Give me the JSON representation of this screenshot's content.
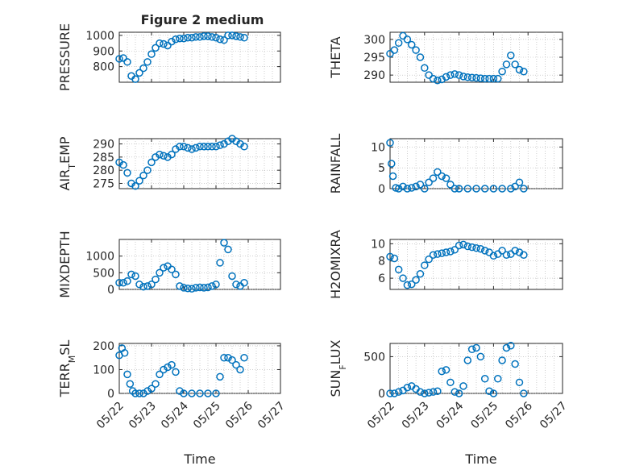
{
  "figure": {
    "title": "Figure 2 medium"
  },
  "chart_data": [
    {
      "type": "scatter",
      "ylabel": "PRESSURE",
      "xlabel": "",
      "xlim": [
        "05/22",
        "05/27"
      ],
      "ylim": [
        700,
        1020
      ],
      "yticks": [
        "800",
        "900",
        "1000"
      ],
      "xticklabels": [],
      "grid": "on",
      "marker_color": "#0072BD",
      "x": [
        "05/22 00:00",
        "05/22 03:00",
        "05/22 06:00",
        "05/22 09:00",
        "05/22 12:00",
        "05/22 15:00",
        "05/22 18:00",
        "05/22 21:00",
        "05/23 00:00",
        "05/23 03:00",
        "05/23 06:00",
        "05/23 09:00",
        "05/23 12:00",
        "05/23 15:00",
        "05/23 18:00",
        "05/23 21:00",
        "05/24 00:00",
        "05/24 03:00",
        "05/24 06:00",
        "05/24 09:00",
        "05/24 12:00",
        "05/24 15:00",
        "05/24 18:00",
        "05/24 21:00",
        "05/25 00:00",
        "05/25 03:00",
        "05/25 06:00",
        "05/25 09:00",
        "05/25 12:00",
        "05/25 15:00",
        "05/25 18:00",
        "05/25 21:00"
      ],
      "y": [
        850,
        855,
        830,
        740,
        720,
        760,
        790,
        830,
        880,
        920,
        950,
        945,
        935,
        960,
        975,
        980,
        980,
        985,
        985,
        990,
        990,
        995,
        995,
        990,
        985,
        975,
        970,
        1000,
        1000,
        995,
        990,
        985
      ]
    },
    {
      "type": "scatter",
      "ylabel": "THETA",
      "xlabel": "",
      "xlim": [
        "05/22",
        "05/27"
      ],
      "ylim": [
        288,
        302
      ],
      "yticks": [
        "290",
        "295",
        "300"
      ],
      "xticklabels": [],
      "grid": "on",
      "marker_color": "#0072BD",
      "x": [
        "05/22 00:00",
        "05/22 03:00",
        "05/22 06:00",
        "05/22 09:00",
        "05/22 12:00",
        "05/22 15:00",
        "05/22 18:00",
        "05/22 21:00",
        "05/23 00:00",
        "05/23 03:00",
        "05/23 06:00",
        "05/23 09:00",
        "05/23 12:00",
        "05/23 15:00",
        "05/23 18:00",
        "05/23 21:00",
        "05/24 00:00",
        "05/24 03:00",
        "05/24 06:00",
        "05/24 09:00",
        "05/24 12:00",
        "05/24 15:00",
        "05/24 18:00",
        "05/24 21:00",
        "05/25 00:00",
        "05/25 03:00",
        "05/25 06:00",
        "05/25 09:00",
        "05/25 12:00",
        "05/25 15:00",
        "05/25 18:00",
        "05/25 21:00"
      ],
      "y": [
        296,
        297,
        299,
        301,
        300,
        298.5,
        297,
        295,
        292,
        290,
        289,
        288.5,
        288.8,
        289.5,
        290,
        290.3,
        290,
        289.6,
        289.4,
        289.3,
        289.2,
        289.1,
        289,
        289,
        289,
        289,
        291,
        293,
        295.5,
        293,
        291.5,
        291
      ]
    },
    {
      "type": "scatter",
      "ylabel": "AIR_TEMP",
      "xlabel": "",
      "xlim": [
        "05/22",
        "05/27"
      ],
      "ylim": [
        273,
        292
      ],
      "yticks": [
        "275",
        "280",
        "285",
        "290"
      ],
      "xticklabels": [],
      "grid": "on",
      "marker_color": "#0072BD",
      "x": [
        "05/22 00:00",
        "05/22 03:00",
        "05/22 06:00",
        "05/22 09:00",
        "05/22 12:00",
        "05/22 15:00",
        "05/22 18:00",
        "05/22 21:00",
        "05/23 00:00",
        "05/23 03:00",
        "05/23 06:00",
        "05/23 09:00",
        "05/23 12:00",
        "05/23 15:00",
        "05/23 18:00",
        "05/23 21:00",
        "05/24 00:00",
        "05/24 03:00",
        "05/24 06:00",
        "05/24 09:00",
        "05/24 12:00",
        "05/24 15:00",
        "05/24 18:00",
        "05/24 21:00",
        "05/25 00:00",
        "05/25 03:00",
        "05/25 06:00",
        "05/25 09:00",
        "05/25 12:00",
        "05/25 15:00",
        "05/25 18:00",
        "05/25 21:00"
      ],
      "y": [
        283,
        282,
        279,
        275,
        274,
        276,
        278,
        280,
        283,
        285,
        286,
        285.5,
        285,
        286,
        288,
        289,
        289,
        288.5,
        288,
        288.5,
        289,
        289,
        289,
        289,
        289,
        289.5,
        290,
        291,
        292,
        291,
        290,
        289
      ]
    },
    {
      "type": "scatter",
      "ylabel": "RAINFALL",
      "xlabel": "",
      "xlim": [
        "05/22",
        "05/27"
      ],
      "ylim": [
        0,
        12
      ],
      "yticks": [
        "0",
        "5",
        "10"
      ],
      "xticklabels": [],
      "grid": "on",
      "marker_color": "#0072BD",
      "x": [
        "05/22 00:00",
        "05/22 01:00",
        "05/22 02:00",
        "05/22 04:00",
        "05/22 06:00",
        "05/22 09:00",
        "05/22 12:00",
        "05/22 15:00",
        "05/22 18:00",
        "05/22 21:00",
        "05/23 00:00",
        "05/23 03:00",
        "05/23 06:00",
        "05/23 09:00",
        "05/23 12:00",
        "05/23 15:00",
        "05/23 18:00",
        "05/23 21:00",
        "05/24 00:00",
        "05/24 06:00",
        "05/24 12:00",
        "05/24 18:00",
        "05/25 00:00",
        "05/25 06:00",
        "05/25 12:00",
        "05/25 15:00",
        "05/25 18:00",
        "05/25 21:00"
      ],
      "y": [
        11,
        6,
        3,
        0.2,
        0,
        0.5,
        0,
        0.2,
        0.5,
        1,
        0,
        1.5,
        2.5,
        4,
        3,
        2.5,
        1,
        0,
        0,
        0,
        0,
        0,
        0,
        0,
        0,
        0.5,
        1.5,
        0
      ]
    },
    {
      "type": "scatter",
      "ylabel": "MIXDEPTH",
      "xlabel": "",
      "xlim": [
        "05/22",
        "05/27"
      ],
      "ylim": [
        0,
        1500
      ],
      "yticks": [
        "0",
        "500",
        "1000"
      ],
      "xticklabels": [],
      "grid": "on",
      "marker_color": "#0072BD",
      "x": [
        "05/22 00:00",
        "05/22 03:00",
        "05/22 06:00",
        "05/22 09:00",
        "05/22 12:00",
        "05/22 15:00",
        "05/22 18:00",
        "05/22 21:00",
        "05/23 00:00",
        "05/23 03:00",
        "05/23 06:00",
        "05/23 09:00",
        "05/23 12:00",
        "05/23 15:00",
        "05/23 18:00",
        "05/23 21:00",
        "05/24 00:00",
        "05/24 03:00",
        "05/24 06:00",
        "05/24 09:00",
        "05/24 12:00",
        "05/24 15:00",
        "05/24 18:00",
        "05/24 21:00",
        "05/25 00:00",
        "05/25 03:00",
        "05/25 06:00",
        "05/25 09:00",
        "05/25 12:00",
        "05/25 15:00",
        "05/25 18:00",
        "05/25 21:00"
      ],
      "y": [
        200,
        200,
        250,
        450,
        400,
        150,
        80,
        100,
        150,
        300,
        500,
        650,
        700,
        600,
        450,
        100,
        50,
        30,
        20,
        50,
        60,
        50,
        60,
        100,
        150,
        800,
        1400,
        1200,
        400,
        150,
        100,
        200
      ]
    },
    {
      "type": "scatter",
      "ylabel": "H2OMIXRA",
      "xlabel": "",
      "xlim": [
        "05/22",
        "05/27"
      ],
      "ylim": [
        4.7,
        10.5
      ],
      "yticks": [
        "6",
        "8",
        "10"
      ],
      "xticklabels": [],
      "grid": "on",
      "marker_color": "#0072BD",
      "x": [
        "05/22 00:00",
        "05/22 03:00",
        "05/22 06:00",
        "05/22 09:00",
        "05/22 12:00",
        "05/22 15:00",
        "05/22 18:00",
        "05/22 21:00",
        "05/23 00:00",
        "05/23 03:00",
        "05/23 06:00",
        "05/23 09:00",
        "05/23 12:00",
        "05/23 15:00",
        "05/23 18:00",
        "05/23 21:00",
        "05/24 00:00",
        "05/24 03:00",
        "05/24 06:00",
        "05/24 09:00",
        "05/24 12:00",
        "05/24 15:00",
        "05/24 18:00",
        "05/24 21:00",
        "05/25 00:00",
        "05/25 03:00",
        "05/25 06:00",
        "05/25 09:00",
        "05/25 12:00",
        "05/25 15:00",
        "05/25 18:00",
        "05/25 21:00"
      ],
      "y": [
        8.5,
        8.3,
        7,
        6,
        5.2,
        5.3,
        5.8,
        6.5,
        7.5,
        8.2,
        8.7,
        8.8,
        8.9,
        9,
        9.1,
        9.3,
        9.8,
        9.9,
        9.7,
        9.6,
        9.5,
        9.4,
        9.2,
        9,
        8.6,
        8.8,
        9.2,
        8.7,
        8.8,
        9.2,
        9.0,
        8.7
      ]
    },
    {
      "type": "scatter",
      "ylabel": "TERR_MSL",
      "xlabel": "Time",
      "xlim": [
        "05/22",
        "05/27"
      ],
      "ylim": [
        0,
        210
      ],
      "yticks": [
        "0",
        "100",
        "200"
      ],
      "xticklabels": [
        "05/22",
        "05/23",
        "05/24",
        "05/25",
        "05/26",
        "05/27"
      ],
      "grid": "on",
      "marker_color": "#0072BD",
      "x": [
        "05/22 00:00",
        "05/22 02:00",
        "05/22 04:00",
        "05/22 06:00",
        "05/22 08:00",
        "05/22 10:00",
        "05/22 12:00",
        "05/22 15:00",
        "05/22 18:00",
        "05/22 21:00",
        "05/23 00:00",
        "05/23 03:00",
        "05/23 06:00",
        "05/23 09:00",
        "05/23 12:00",
        "05/23 15:00",
        "05/23 18:00",
        "05/23 21:00",
        "05/24 00:00",
        "05/24 06:00",
        "05/24 12:00",
        "05/24 18:00",
        "05/25 00:00",
        "05/25 03:00",
        "05/25 06:00",
        "05/25 09:00",
        "05/25 12:00",
        "05/25 15:00",
        "05/25 18:00",
        "05/25 21:00"
      ],
      "y": [
        160,
        190,
        170,
        80,
        40,
        10,
        0,
        0,
        0,
        10,
        20,
        40,
        80,
        100,
        110,
        120,
        90,
        10,
        0,
        0,
        0,
        0,
        0,
        70,
        150,
        150,
        140,
        120,
        100,
        150
      ]
    },
    {
      "type": "scatter",
      "ylabel": "SUN_FLUX",
      "xlabel": "Time",
      "xlim": [
        "05/22",
        "05/27"
      ],
      "ylim": [
        0,
        680
      ],
      "yticks": [
        "0",
        "500"
      ],
      "xticklabels": [
        "05/22",
        "05/23",
        "05/24",
        "05/25",
        "05/26",
        "05/27"
      ],
      "grid": "on",
      "marker_color": "#0072BD",
      "x": [
        "05/22 00:00",
        "05/22 03:00",
        "05/22 06:00",
        "05/22 09:00",
        "05/22 12:00",
        "05/22 15:00",
        "05/22 18:00",
        "05/22 21:00",
        "05/23 00:00",
        "05/23 03:00",
        "05/23 06:00",
        "05/23 09:00",
        "05/23 12:00",
        "05/23 15:00",
        "05/23 18:00",
        "05/23 21:00",
        "05/24 00:00",
        "05/24 03:00",
        "05/24 06:00",
        "05/24 09:00",
        "05/24 12:00",
        "05/24 15:00",
        "05/24 18:00",
        "05/24 21:00",
        "05/25 00:00",
        "05/25 03:00",
        "05/25 06:00",
        "05/25 09:00",
        "05/25 12:00",
        "05/25 15:00",
        "05/25 18:00",
        "05/25 21:00"
      ],
      "y": [
        0,
        0,
        20,
        40,
        80,
        100,
        60,
        20,
        0,
        10,
        20,
        30,
        300,
        320,
        150,
        20,
        0,
        100,
        450,
        600,
        620,
        500,
        200,
        30,
        0,
        200,
        450,
        620,
        650,
        400,
        150,
        0
      ]
    }
  ]
}
